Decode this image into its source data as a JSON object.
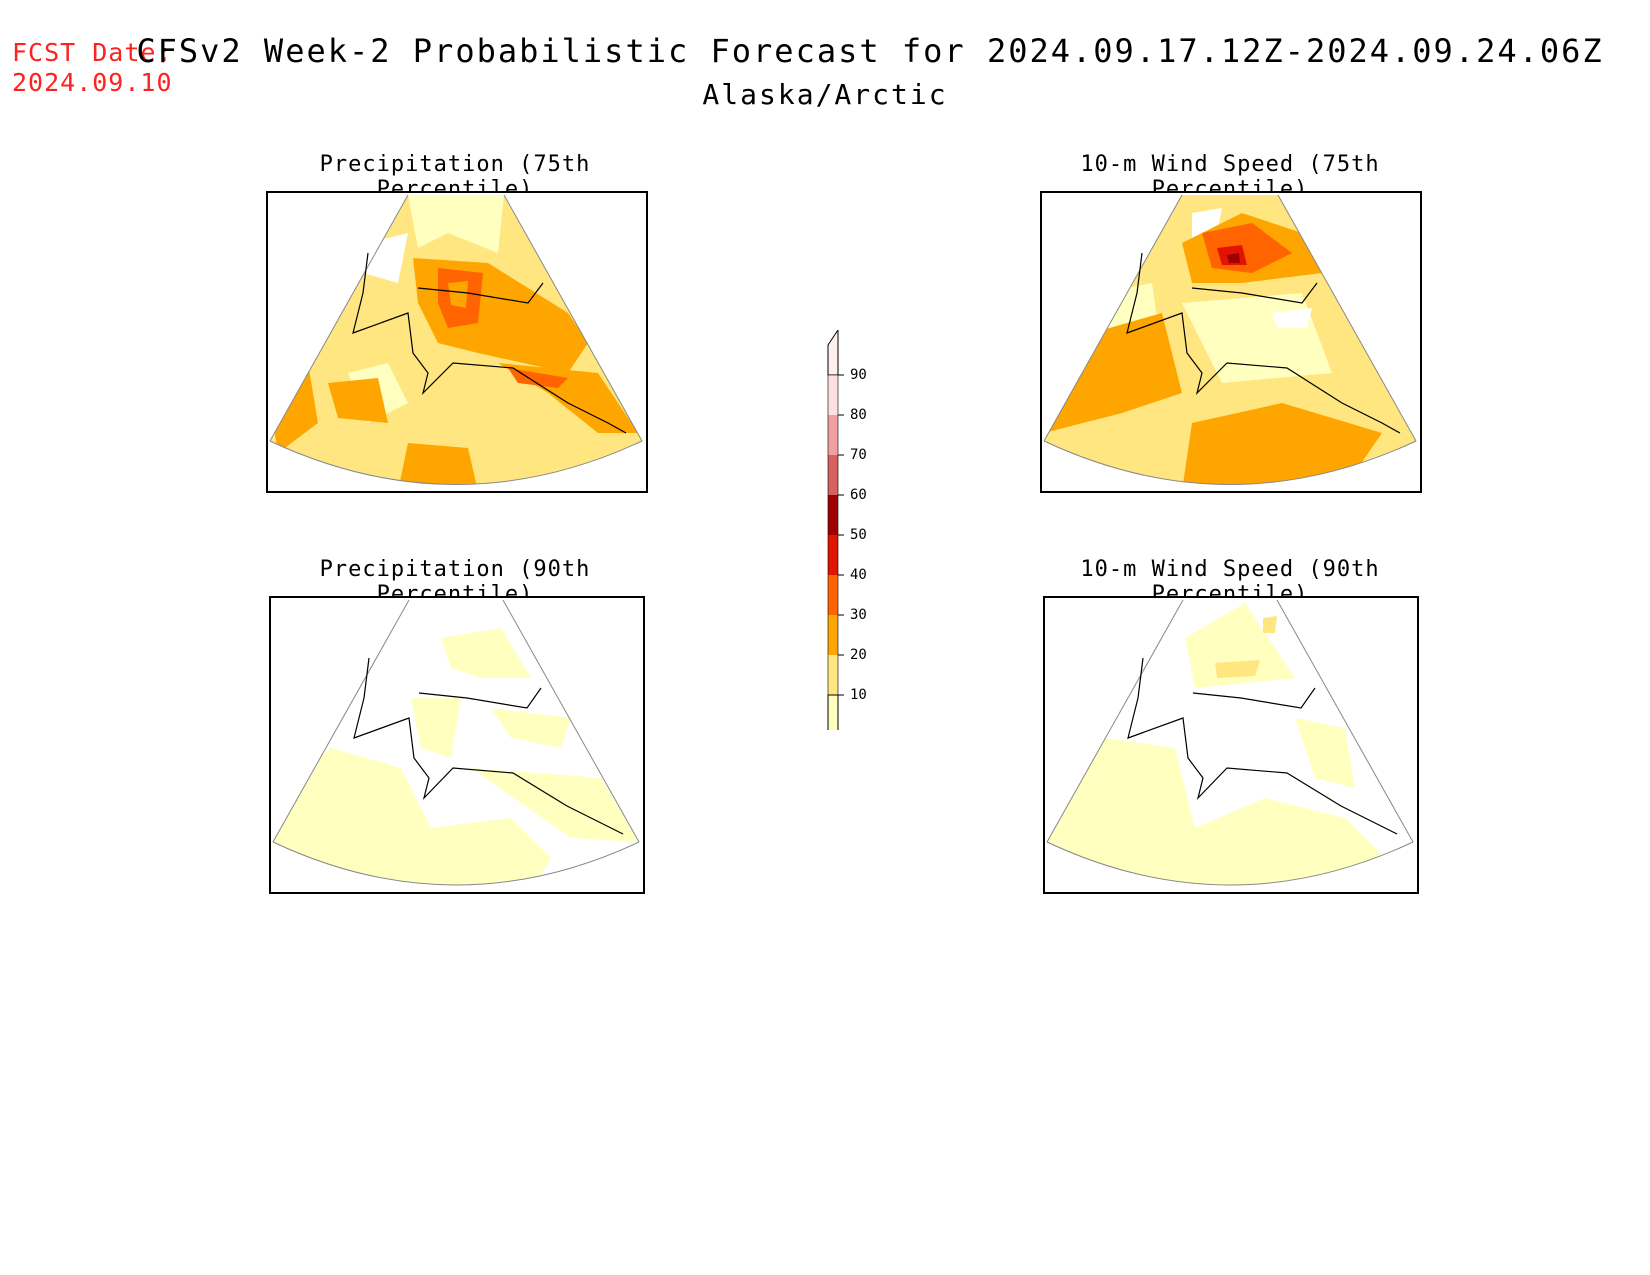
{
  "header": {
    "fcst_label": "FCST Date:",
    "fcst_date": "2024.09.10",
    "title": "CFSv2 Week-2 Probabilistic Forecast for 2024.09.17.12Z-2024.09.24.06Z",
    "subtitle": "Alaska/Arctic"
  },
  "panels": [
    {
      "title": "Precipitation (75th Percentile)"
    },
    {
      "title": "10-m Wind Speed (75th Percentile)"
    },
    {
      "title": "Precipitation (90th Percentile)"
    },
    {
      "title": "10-m Wind Speed (90th Percentile)"
    }
  ],
  "colorbar": {
    "levels": [
      "10",
      "20",
      "30",
      "40",
      "50",
      "60",
      "70",
      "80",
      "90"
    ],
    "colors": [
      "#ffffc0",
      "#ffe680",
      "#ffa500",
      "#ff6400",
      "#e01400",
      "#a00000",
      "#d86060",
      "#f0a0a0",
      "#ffe0e0"
    ]
  }
}
